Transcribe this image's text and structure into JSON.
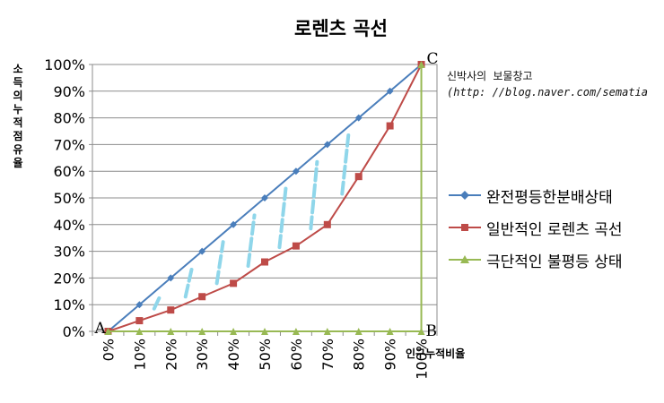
{
  "chart_data": {
    "type": "line",
    "title": "로렌츠 곡선",
    "xlabel": "인구누적비율",
    "ylabel": "소득의누적점유율",
    "categories": [
      "0%",
      "10%",
      "20%",
      "30%",
      "40%",
      "50%",
      "60%",
      "70%",
      "80%",
      "90%",
      "100%"
    ],
    "y_ticks": [
      "0%",
      "10%",
      "20%",
      "30%",
      "40%",
      "50%",
      "60%",
      "70%",
      "80%",
      "90%",
      "100%"
    ],
    "ylim": [
      0,
      100
    ],
    "grid": true,
    "legend_position": "right",
    "series": [
      {
        "name": "완전평등한분배상태",
        "color": "#4a7ebb",
        "marker": "diamond",
        "values": [
          0,
          10,
          20,
          30,
          40,
          50,
          60,
          70,
          80,
          90,
          100
        ]
      },
      {
        "name": "일반적인 로렌츠 곡선",
        "color": "#be4b48",
        "marker": "square",
        "values": [
          0,
          4,
          8,
          13,
          18,
          26,
          32,
          40,
          58,
          77,
          100
        ]
      },
      {
        "name": "극단적인 불평등 상태",
        "color": "#98b954",
        "marker": "triangle",
        "values": [
          0,
          0,
          0,
          0,
          0,
          0,
          0,
          0,
          0,
          0,
          0
        ],
        "final_vertical_to": 100
      }
    ],
    "point_labels": {
      "A": "A",
      "B": "B",
      "C": "C"
    },
    "shade_color": "#8fd6ea"
  },
  "watermark": {
    "line1": "신박사의 보물창고",
    "line2": "(http: //blog.naver.com/sematia"
  }
}
